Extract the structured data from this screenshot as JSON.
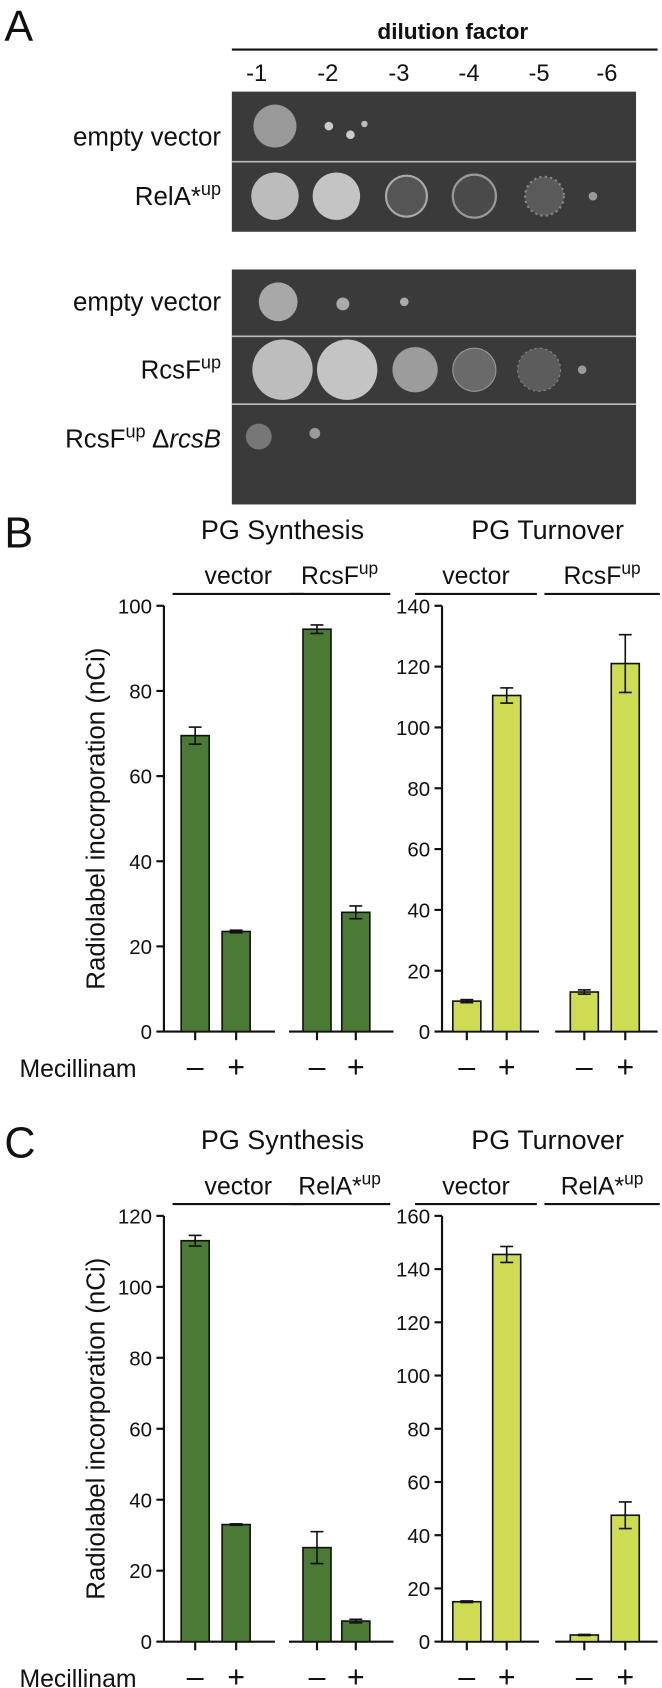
{
  "panel_a": {
    "letter": "A",
    "header": "dilution factor",
    "dilutions": [
      "-1",
      "-2",
      "-3",
      "-4",
      "-5",
      "-6"
    ],
    "rows": [
      [
        {
          "text": "empty vector"
        }
      ],
      [
        {
          "text": "RelA*"
        },
        {
          "text": "up",
          "style": "sup"
        }
      ],
      [
        {
          "text": "empty vector"
        }
      ],
      [
        {
          "text": "RcsF"
        },
        {
          "text": "up",
          "style": "sup"
        }
      ],
      [
        {
          "text": "RcsF"
        },
        {
          "text": "up",
          "style": "sup"
        },
        {
          "text": "Δ"
        },
        {
          "text": "rcsB",
          "style": "italic"
        }
      ]
    ]
  },
  "panel_letters": [
    "B",
    "C"
  ],
  "chart_data": [
    {
      "type": "bar",
      "title": "PG Synthesis",
      "groups": [
        [
          {
            "text": "vector"
          }
        ],
        [
          {
            "text": "RcsF"
          },
          {
            "text": "up",
            "style": "sup"
          }
        ]
      ],
      "categories": [
        "–",
        "+",
        "–",
        "+"
      ],
      "values": [
        69.5,
        23.5,
        94.5,
        28
      ],
      "errors": [
        2,
        0.3,
        1,
        1.5
      ],
      "color": "#4b7a34",
      "ylim": [
        0,
        100
      ],
      "yticks": [
        0,
        20,
        40,
        60,
        80,
        100
      ],
      "y_label": "Radiolabel incorporation (nCi)",
      "x_label": "Mecillinam"
    },
    {
      "type": "bar",
      "title": "PG Turnover",
      "groups": [
        [
          {
            "text": "vector"
          }
        ],
        [
          {
            "text": "RcsF"
          },
          {
            "text": "up",
            "style": "sup"
          }
        ]
      ],
      "categories": [
        "–",
        "+",
        "–",
        "+"
      ],
      "values": [
        10,
        110.5,
        13,
        121
      ],
      "errors": [
        0.5,
        2.5,
        0.7,
        9.5
      ],
      "color": "#cddc52",
      "ylim": [
        0,
        140
      ],
      "yticks": [
        0,
        20,
        40,
        60,
        80,
        100,
        120,
        140
      ]
    },
    {
      "type": "bar",
      "title": "PG Synthesis",
      "groups": [
        [
          {
            "text": "vector"
          }
        ],
        [
          {
            "text": "RelA*"
          },
          {
            "text": "up",
            "style": "sup"
          }
        ]
      ],
      "categories": [
        "–",
        "+",
        "–",
        "+"
      ],
      "values": [
        113,
        33,
        26.5,
        5.8
      ],
      "errors": [
        1.5,
        0.2,
        4.5,
        0.5
      ],
      "color": "#4b7a34",
      "ylim": [
        0,
        120
      ],
      "yticks": [
        0,
        20,
        40,
        60,
        80,
        100,
        120
      ],
      "y_label": "Radiolabel incorporation (nCi)",
      "x_label": "Mecillinam"
    },
    {
      "type": "bar",
      "title": "PG Turnover",
      "groups": [
        [
          {
            "text": "vector"
          }
        ],
        [
          {
            "text": "RelA*"
          },
          {
            "text": "up",
            "style": "sup"
          }
        ]
      ],
      "categories": [
        "–",
        "+",
        "–",
        "+"
      ],
      "values": [
        15,
        145.5,
        2.5,
        47.5
      ],
      "errors": [
        0.3,
        3,
        0.2,
        5
      ],
      "color": "#cddc52",
      "ylim": [
        0,
        160
      ],
      "yticks": [
        0,
        20,
        40,
        60,
        80,
        100,
        120,
        140,
        160
      ]
    }
  ]
}
